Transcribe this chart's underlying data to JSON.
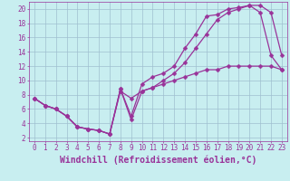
{
  "xlabel": "Windchill (Refroidissement éolien,°C)",
  "ylabel": "",
  "xlim": [
    -0.5,
    23.5
  ],
  "ylim": [
    1.5,
    21
  ],
  "xticks": [
    0,
    1,
    2,
    3,
    4,
    5,
    6,
    7,
    8,
    9,
    10,
    11,
    12,
    13,
    14,
    15,
    16,
    17,
    18,
    19,
    20,
    21,
    22,
    23
  ],
  "yticks": [
    2,
    4,
    6,
    8,
    10,
    12,
    14,
    16,
    18,
    20
  ],
  "bg_color": "#c8eef0",
  "grid_color": "#9fbfcf",
  "line_color": "#993399",
  "lines": [
    {
      "x": [
        0,
        1,
        2,
        3,
        4,
        5,
        6,
        7,
        8,
        9,
        10,
        11,
        12,
        13,
        14,
        15,
        16,
        17,
        18,
        19,
        20,
        21,
        22,
        23
      ],
      "y": [
        7.5,
        6.5,
        6.0,
        5.0,
        3.5,
        3.2,
        3.0,
        2.5,
        8.8,
        5.0,
        9.5,
        10.5,
        11.0,
        12.0,
        14.5,
        16.5,
        19.0,
        19.2,
        20.0,
        20.2,
        20.5,
        20.5,
        19.5,
        13.5
      ]
    },
    {
      "x": [
        0,
        1,
        2,
        3,
        4,
        5,
        6,
        7,
        8,
        9,
        10,
        11,
        12,
        13,
        14,
        15,
        16,
        17,
        18,
        19,
        20,
        21,
        22,
        23
      ],
      "y": [
        7.5,
        6.5,
        6.0,
        5.0,
        3.5,
        3.2,
        3.0,
        2.5,
        8.8,
        4.5,
        8.5,
        9.0,
        10.0,
        11.0,
        12.5,
        14.5,
        16.5,
        18.5,
        19.5,
        20.0,
        20.5,
        19.5,
        13.5,
        11.5
      ]
    },
    {
      "x": [
        0,
        1,
        2,
        3,
        4,
        5,
        6,
        7,
        8,
        9,
        10,
        11,
        12,
        13,
        14,
        15,
        16,
        17,
        18,
        19,
        20,
        21,
        22,
        23
      ],
      "y": [
        7.5,
        6.5,
        6.0,
        5.0,
        3.5,
        3.2,
        3.0,
        2.5,
        8.5,
        7.5,
        8.5,
        9.0,
        9.5,
        10.0,
        10.5,
        11.0,
        11.5,
        11.5,
        12.0,
        12.0,
        12.0,
        12.0,
        12.0,
        11.5
      ]
    }
  ],
  "marker": "D",
  "markersize": 2.5,
  "linewidth": 0.9,
  "font_color": "#993399",
  "tick_fontsize": 5.5,
  "label_fontsize": 7.0
}
